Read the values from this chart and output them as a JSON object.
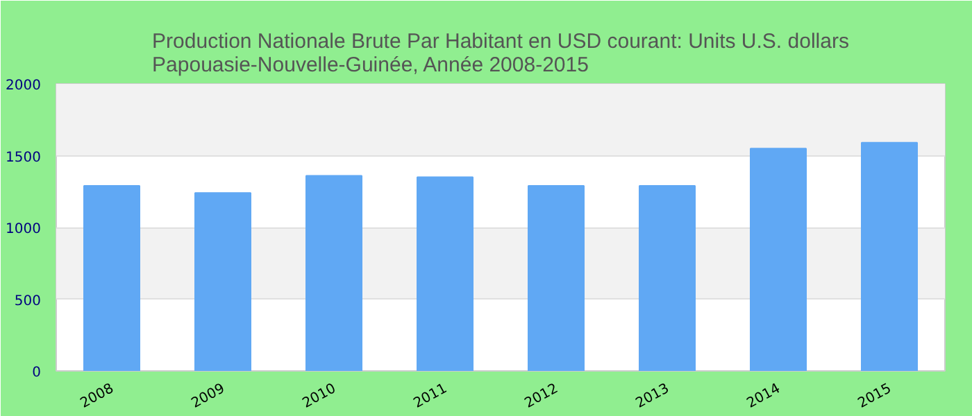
{
  "chart_data": {
    "type": "bar",
    "title": "Production Nationale Brute Par Habitant en USD courant: Units U.S. dollars\nPapouasie-Nouvelle-Guinée, Année 2008-2015",
    "categories": [
      "2008",
      "2009",
      "2010",
      "2011",
      "2012",
      "2013",
      "2014",
      "2015"
    ],
    "values": [
      1290,
      1240,
      1360,
      1350,
      1290,
      1290,
      1550,
      1590
    ],
    "color": "#60a8f4",
    "ylim": [
      0,
      2000
    ],
    "yticks": [
      0,
      500,
      1000,
      1500,
      2000
    ],
    "grid": "y"
  }
}
